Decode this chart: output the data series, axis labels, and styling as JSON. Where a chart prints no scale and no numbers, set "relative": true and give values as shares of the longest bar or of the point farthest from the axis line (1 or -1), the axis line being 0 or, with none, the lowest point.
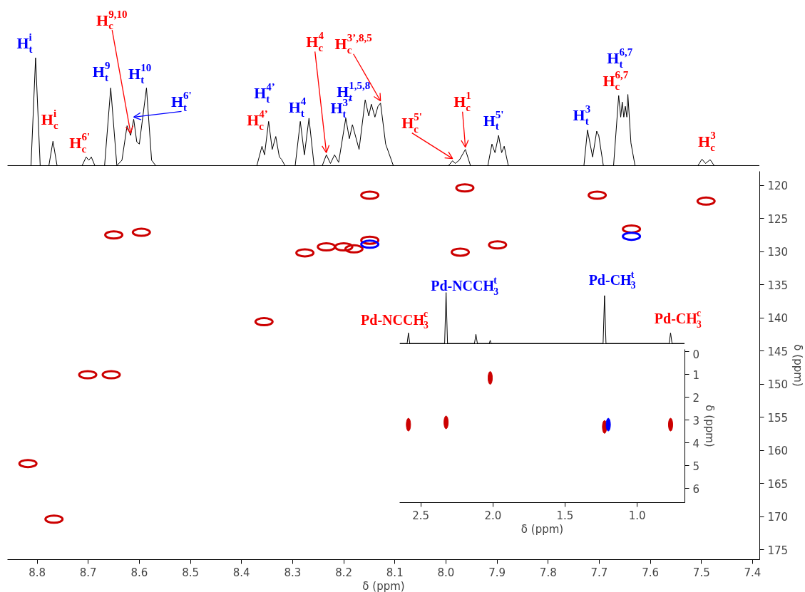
{
  "chart_data": [
    {
      "type": "line",
      "relative": true,
      "color": "#000000",
      "tick_labels": false,
      "xlim": [
        8.858,
        7.386
      ],
      "x": [
        8.858,
        8.812,
        8.803,
        8.794,
        8.777,
        8.769,
        8.761,
        8.712,
        8.704,
        8.699,
        8.694,
        8.687,
        8.668,
        8.656,
        8.644,
        8.634,
        8.624,
        8.617,
        8.611,
        8.605,
        8.6,
        8.586,
        8.576,
        8.568,
        8.37,
        8.36,
        8.355,
        8.347,
        8.34,
        8.333,
        8.326,
        8.322,
        8.315,
        8.295,
        8.285,
        8.277,
        8.268,
        8.258,
        8.242,
        8.234,
        8.226,
        8.218,
        8.21,
        8.196,
        8.189,
        8.183,
        8.17,
        8.158,
        8.151,
        8.146,
        8.139,
        8.133,
        8.128,
        8.118,
        8.103,
        7.995,
        7.987,
        7.982,
        7.974,
        7.962,
        7.952,
        7.918,
        7.91,
        7.904,
        7.897,
        7.891,
        7.886,
        7.878,
        7.73,
        7.723,
        7.713,
        7.705,
        7.701,
        7.692,
        7.672,
        7.662,
        7.658,
        7.655,
        7.652,
        7.649,
        7.646,
        7.644,
        7.638,
        7.63,
        7.507,
        7.499,
        7.492,
        7.483,
        7.475,
        7.386
      ],
      "values": [
        0,
        0,
        1.0,
        0,
        0,
        0.226,
        0,
        0,
        0.08,
        0.05,
        0.08,
        0,
        0,
        0.72,
        0,
        0.05,
        0.37,
        0.28,
        0.43,
        0.22,
        0.2,
        0.72,
        0.05,
        0,
        0,
        0.18,
        0.1,
        0.41,
        0.15,
        0.27,
        0.08,
        0.06,
        0,
        0,
        0.41,
        0.1,
        0.44,
        0,
        0,
        0.1,
        0.02,
        0.1,
        0.03,
        0.44,
        0.25,
        0.38,
        0.15,
        0.61,
        0.46,
        0.57,
        0.45,
        0.55,
        0.58,
        0.2,
        0,
        0,
        0.045,
        0.02,
        0.05,
        0.15,
        0,
        0,
        0.2,
        0.12,
        0.28,
        0.12,
        0.18,
        0,
        0,
        0.33,
        0.08,
        0.32,
        0.28,
        0,
        0,
        0.65,
        0.45,
        0.59,
        0.45,
        0.55,
        0.45,
        0.66,
        0.21,
        0,
        0,
        0.06,
        0.02,
        0.055,
        0,
        0
      ],
      "annotations": [
        {
          "text": "H$^{i}$$_{t}$",
          "x": 8.803,
          "y": 1.0
        },
        {
          "text": "H$^{i}$$_{c}$",
          "x": 8.769,
          "y": 0.226
        },
        {
          "text": "H$^{6'}$$_{c}$",
          "x": 8.704,
          "y": 0.08
        },
        {
          "text": "H$^{9}$$_{t}$",
          "x": 8.656,
          "y": 0.72
        },
        {
          "text": "H$^{9,10}$$_{c}$",
          "x": 8.617,
          "y": 0.28
        },
        {
          "text": "H$^{10}$$_{t}$",
          "x": 8.586,
          "y": 0.72
        },
        {
          "text": "H$^{6'}$$_{t}$",
          "x": 8.611,
          "y": 0.43
        },
        {
          "text": "H$^{4’}$$_{t}$",
          "x": 8.347,
          "y": 0.41
        },
        {
          "text": "H$^{4’}$$_{c}$",
          "x": 8.347,
          "y": 0.41
        },
        {
          "text": "H$^{4}$$_{t}$",
          "x": 8.285,
          "y": 0.41
        },
        {
          "text": "H$^{4}$$_{c}$",
          "x": 8.234,
          "y": 0.1
        },
        {
          "text": "H$^{3’,8,5}$$_{c}$",
          "x": 8.128,
          "y": 0.58
        },
        {
          "text": "H$^{3'}$$_{t}$",
          "x": 8.196,
          "y": 0.44
        },
        {
          "text": "H$^{1,5,8}$$_{t}$",
          "x": 8.158,
          "y": 0.61
        },
        {
          "text": "H$^{5'}$$_{c}$",
          "x": 7.987,
          "y": 0.045
        },
        {
          "text": "H$^{1}$$_{c}$",
          "x": 7.962,
          "y": 0.15
        },
        {
          "text": "H$^{5'}$$_{t}$",
          "x": 7.897,
          "y": 0.28
        },
        {
          "text": "H$^{3}$$_{t}$",
          "x": 7.723,
          "y": 0.33
        },
        {
          "text": "H$^{6,7}$$_{t}$",
          "x": 7.644,
          "y": 0.66
        },
        {
          "text": "H$^{6,7}$$_{c}$",
          "x": 7.662,
          "y": 0.65
        },
        {
          "text": "H$^{3}$$_{c}$",
          "x": 7.499,
          "y": 0.06
        }
      ]
    },
    {
      "type": "scatter",
      "xlabel": "δ (ppm)",
      "ylabel": "δ (ppm)",
      "xlim": [
        8.858,
        7.386
      ],
      "ylim": [
        176.5,
        117.9
      ],
      "xticks": [
        8.8,
        8.7,
        8.6,
        8.5,
        8.4,
        8.3,
        8.2,
        8.1,
        {
          "value": 8.0,
          "label": "8.0"
        },
        7.9,
        7.8,
        7.7,
        7.6,
        7.5,
        7.4
      ],
      "yticks": [
        120,
        125,
        130,
        135,
        140,
        145,
        150,
        155,
        160,
        165,
        170,
        175
      ],
      "series": [
        {
          "color": "#cc0000",
          "x": [
            8.818,
            8.767,
            8.655,
            8.701,
            8.65,
            8.596,
            8.356,
            8.276,
            8.234,
            8.2,
            8.18,
            8.149,
            8.149,
            7.963,
            7.972,
            7.899,
            7.704,
            7.637,
            7.491
          ],
          "values": [
            162.0,
            170.4,
            148.6,
            148.6,
            127.5,
            127.1,
            140.6,
            130.2,
            129.3,
            129.3,
            129.6,
            128.3,
            121.5,
            120.4,
            130.1,
            129.0,
            121.5,
            126.6,
            122.4
          ]
        },
        {
          "color": "#0000ff",
          "x": [
            8.149,
            7.637
          ],
          "values": [
            128.9,
            127.7
          ]
        }
      ]
    },
    {
      "type": "line",
      "relative": true,
      "color": "#000000",
      "tick_labels": false,
      "xlim": [
        2.647,
        0.669
      ],
      "x": [
        2.647,
        2.595,
        2.586,
        2.577,
        2.335,
        2.325,
        2.315,
        2.128,
        2.118,
        2.108,
        2.025,
        2.019,
        2.013,
        1.236,
        1.226,
        1.216,
        0.778,
        0.768,
        0.758,
        0.669
      ],
      "values": [
        0,
        0,
        0.206,
        0,
        0,
        1.0,
        0,
        0,
        0.18,
        0,
        0,
        0.06,
        0,
        0,
        0.94,
        0,
        0,
        0.206,
        0,
        0
      ],
      "annotations": [
        "Pd-NCCH$_{3}$$^{c}$",
        "Pd-NCCH$_{3}$$^{t}$",
        "Pd-CH$_{3}$$^{t}$",
        "Pd-CH$_{3}$$^{c}$"
      ]
    },
    {
      "type": "scatter",
      "xlabel": "δ (ppm)",
      "ylabel": "δ (ppm)",
      "xlim": [
        2.647,
        0.669
      ],
      "ylim": [
        6.62,
        -0.1
      ],
      "xticks": [
        2.5,
        {
          "value": 2.0,
          "label": "2.0"
        },
        1.5,
        {
          "value": 1.0,
          "label": "1.0"
        }
      ],
      "yticks": [
        0,
        1,
        2,
        3,
        4,
        5,
        6
      ],
      "series": [
        {
          "color": "#cc0000",
          "x": [
            2.586,
            2.325,
            2.019,
            1.226,
            0.768
          ],
          "values": [
            3.2,
            3.1,
            1.15,
            3.3,
            3.2
          ]
        },
        {
          "color": "#0000ff",
          "x": [
            1.2
          ],
          "values": [
            3.2
          ]
        }
      ]
    }
  ]
}
